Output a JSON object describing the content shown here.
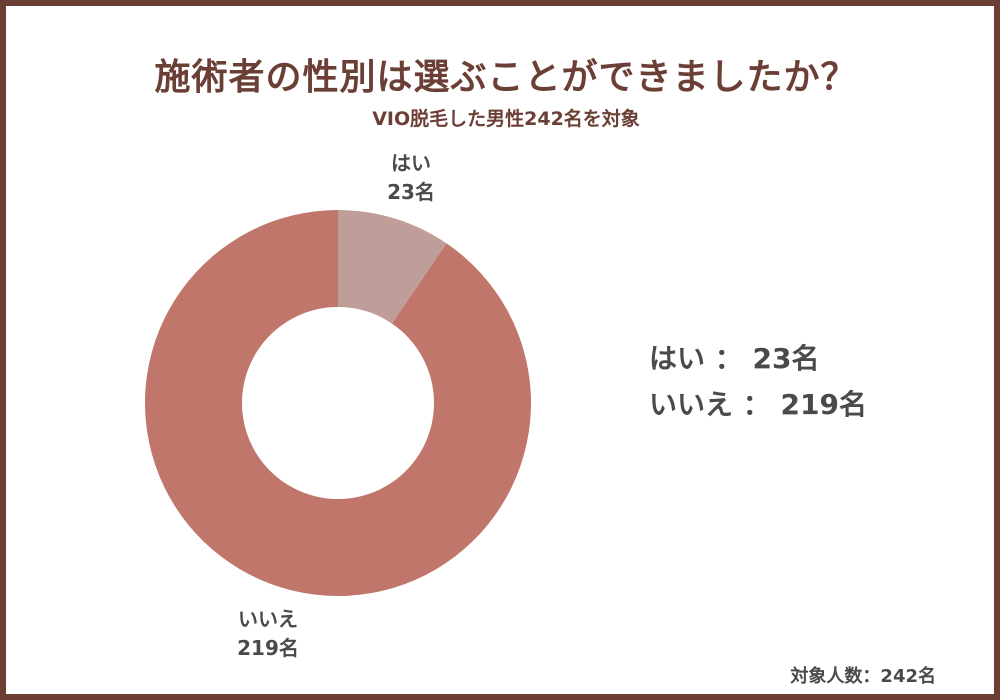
{
  "title": "施術者の性別は選ぶことができましたか？",
  "subtitle": "VIO脱毛した男性242名を対象",
  "chart_data": {
    "type": "pie",
    "donut": true,
    "categories": [
      "はい",
      "いいえ"
    ],
    "values": [
      23,
      219
    ],
    "unit": "名",
    "colors": [
      "#bf9d98",
      "#c0766a"
    ],
    "slice_labels": [
      {
        "line1": "はい",
        "line2": "23名"
      },
      {
        "line1": "いいえ",
        "line2": "219名"
      }
    ]
  },
  "summary": [
    {
      "label": "はい",
      "sep": "：",
      "value": "23名"
    },
    {
      "label": "いいえ",
      "sep": "：",
      "value": "219名"
    }
  ],
  "footer": "対象人数：242名"
}
